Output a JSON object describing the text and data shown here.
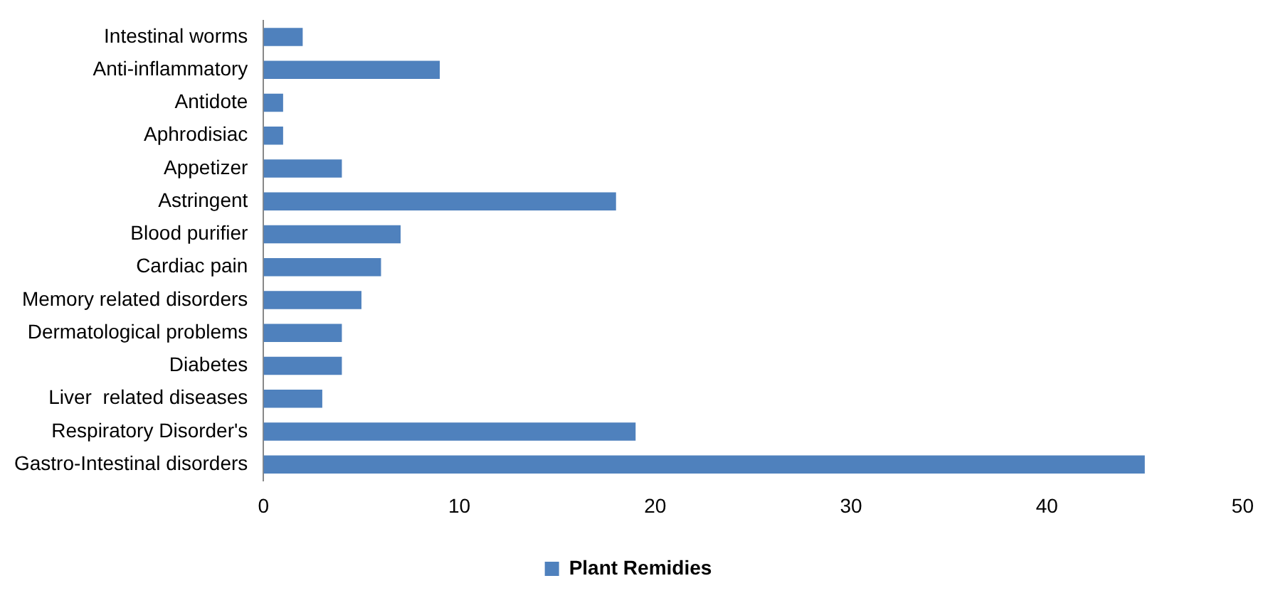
{
  "chart_data": {
    "type": "bar",
    "orientation": "horizontal",
    "categories": [
      "Intestinal worms",
      "Anti-inflammatory",
      "Antidote",
      "Aphrodisiac",
      "Appetizer",
      "Astringent",
      "Blood purifier",
      "Cardiac pain",
      "Memory related disorders",
      "Dermatological problems",
      "Diabetes",
      "Liver  related diseases",
      "Respiratory Disorder's",
      "Gastro-Intestinal disorders"
    ],
    "series": [
      {
        "name": "Plant Remidies",
        "color": "#4f81bd",
        "values": [
          2,
          9,
          1,
          1,
          4,
          18,
          7,
          6,
          5,
          4,
          4,
          3,
          19,
          45
        ]
      }
    ],
    "xlim": [
      0,
      50
    ],
    "xticks": [
      0,
      10,
      20,
      30,
      40,
      50
    ],
    "grid": false,
    "legend": "bottom"
  }
}
